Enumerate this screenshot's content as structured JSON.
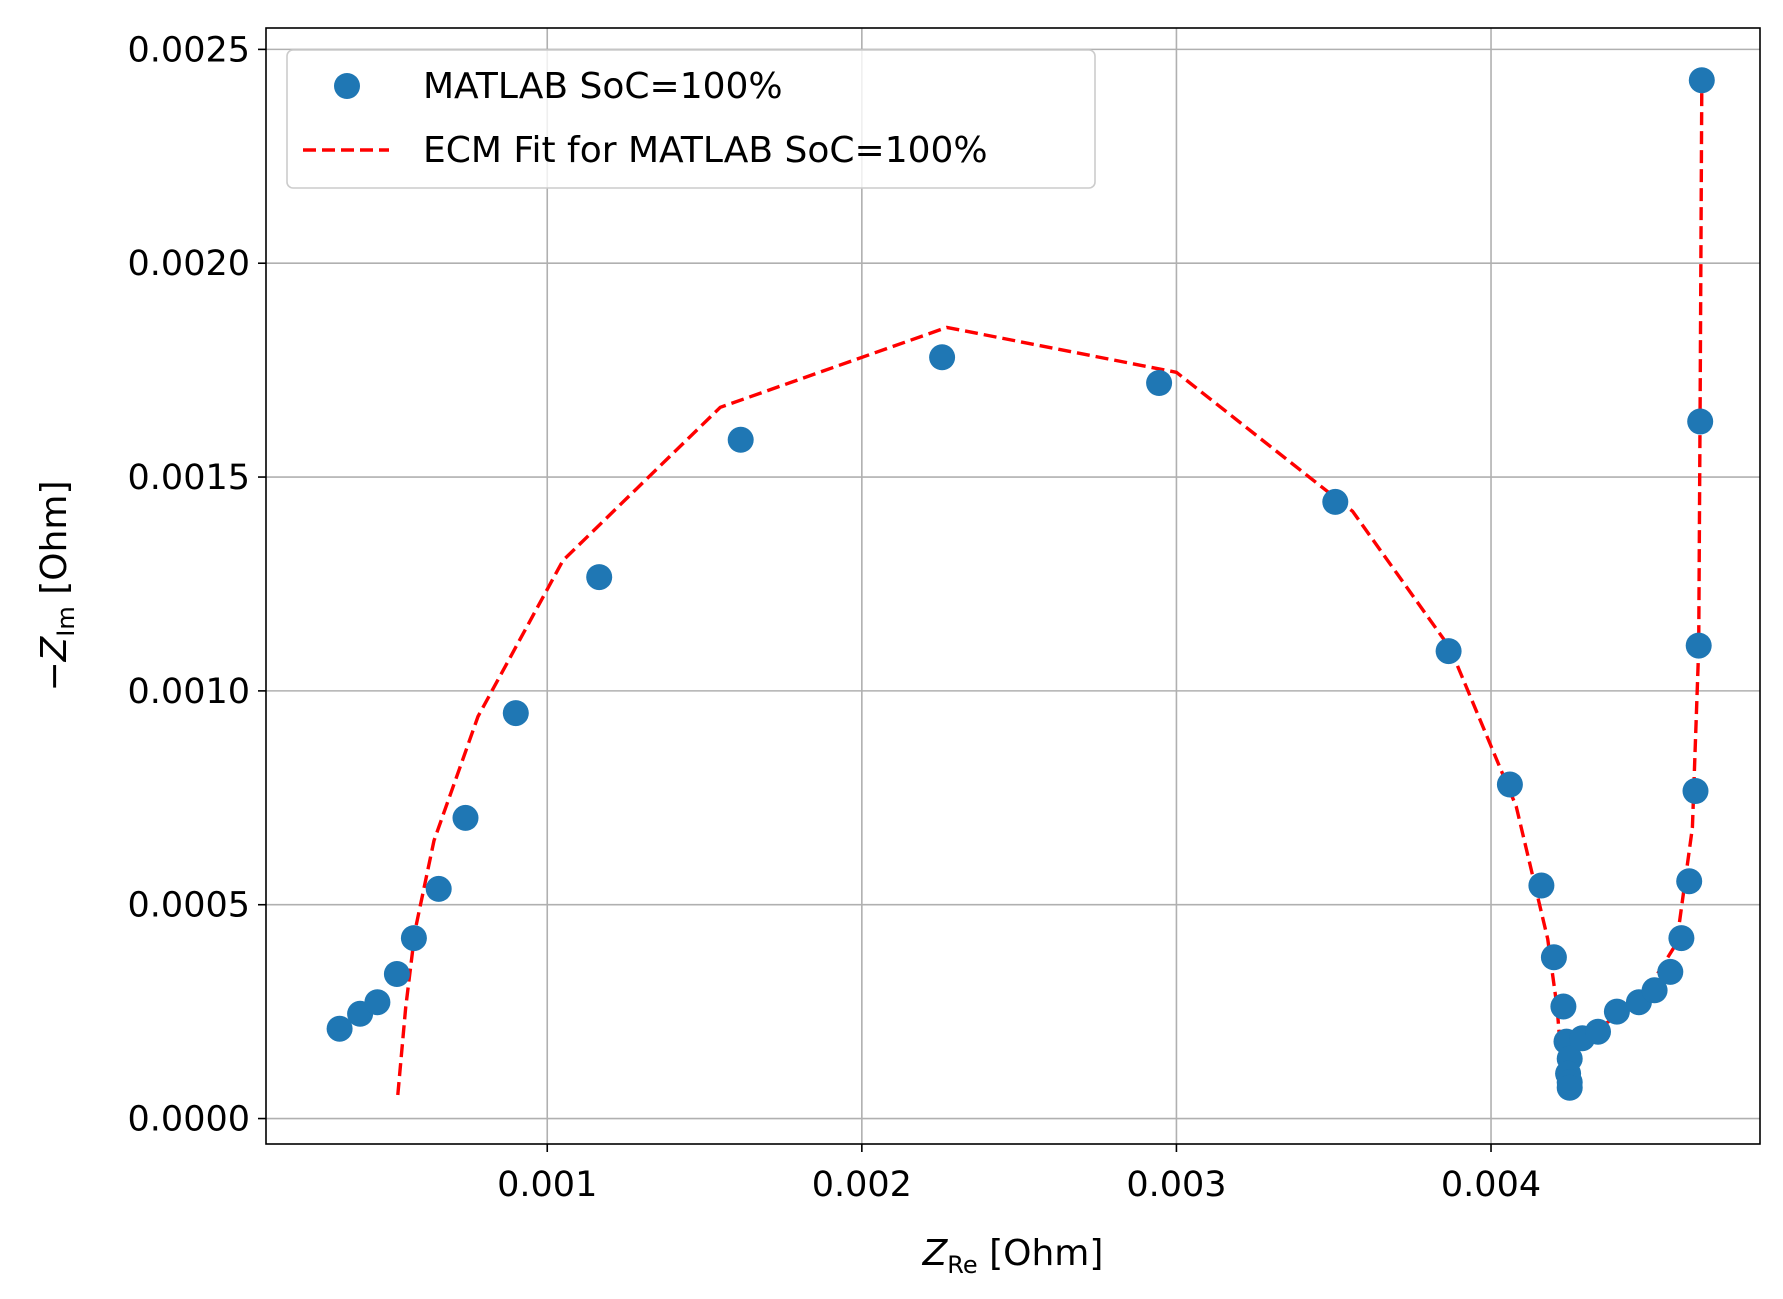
{
  "chart_data": {
    "type": "scatter",
    "title": "",
    "xlabel": {
      "main": "Z",
      "sub": "Re",
      "unit": " [Ohm]"
    },
    "ylabel": {
      "prefix": "−",
      "main": "Z",
      "sub": "Im",
      "unit": " [Ohm]"
    },
    "xlim": [
      0.000106,
      0.004855
    ],
    "ylim": [
      -5.95e-05,
      0.00255
    ],
    "xticks": [
      0.001,
      0.002,
      0.003,
      0.004
    ],
    "xtick_labels": [
      "0.001",
      "0.002",
      "0.003",
      "0.004"
    ],
    "yticks": [
      0.0,
      0.0005,
      0.001,
      0.0015,
      0.002,
      0.0025
    ],
    "ytick_labels": [
      "0.0000",
      "0.0005",
      "0.0010",
      "0.0015",
      "0.0020",
      "0.0025"
    ],
    "grid": true,
    "legend_position": "top-left",
    "series": [
      {
        "name": "MATLAB SoC=100%",
        "kind": "markers",
        "color": "#1f77b4",
        "points": [
          [
            0.00034,
            0.00021
          ],
          [
            0.000405,
            0.000245
          ],
          [
            0.00046,
            0.000272
          ],
          [
            0.000522,
            0.000338
          ],
          [
            0.000576,
            0.000422
          ],
          [
            0.000655,
            0.000537
          ],
          [
            0.00074,
            0.000703
          ],
          [
            0.0009,
            0.000948
          ],
          [
            0.001165,
            0.001266
          ],
          [
            0.001615,
            0.001587
          ],
          [
            0.002255,
            0.00178
          ],
          [
            0.002945,
            0.00172
          ],
          [
            0.003505,
            0.001442
          ],
          [
            0.003865,
            0.001093
          ],
          [
            0.00406,
            0.000781
          ],
          [
            0.00416,
            0.000545
          ],
          [
            0.0042,
            0.000377
          ],
          [
            0.00423,
            0.000262
          ],
          [
            0.00424,
            0.00018
          ],
          [
            0.00425,
            0.00014
          ],
          [
            0.004245,
            0.000105
          ],
          [
            0.00425,
            8.5e-05
          ],
          [
            0.00425,
            7.2e-05
          ],
          [
            0.00429,
            0.000188
          ],
          [
            0.00434,
            0.000203
          ],
          [
            0.0044,
            0.00025
          ],
          [
            0.00447,
            0.000272
          ],
          [
            0.00452,
            0.0003
          ],
          [
            0.00457,
            0.000343
          ],
          [
            0.004605,
            0.000422
          ],
          [
            0.00463,
            0.000555
          ],
          [
            0.00465,
            0.000766
          ],
          [
            0.00466,
            0.001106
          ],
          [
            0.004665,
            0.00163
          ],
          [
            0.00467,
            0.002428
          ]
        ]
      },
      {
        "name": "ECM Fit for MATLAB SoC=100%",
        "kind": "dashed-line",
        "color": "#ff0000",
        "points": [
          [
            0.000525,
            5.5e-05
          ],
          [
            0.00055,
            0.00026
          ],
          [
            0.00058,
            0.00044
          ],
          [
            0.00064,
            0.00065
          ],
          [
            0.00078,
            0.00094
          ],
          [
            0.00105,
            0.001305
          ],
          [
            0.00155,
            0.001663
          ],
          [
            0.00227,
            0.00185
          ],
          [
            0.003,
            0.001745
          ],
          [
            0.00356,
            0.00142
          ],
          [
            0.00387,
            0.0011
          ],
          [
            0.00408,
            0.00073
          ],
          [
            0.00418,
            0.00042
          ],
          [
            0.00421,
            0.00026
          ],
          [
            0.00423,
            7.5e-05
          ],
          [
            0.00428,
            0.00017
          ],
          [
            0.00436,
            0.00022
          ],
          [
            0.00448,
            0.00028
          ],
          [
            0.00459,
            0.00041
          ],
          [
            0.00464,
            0.00068
          ],
          [
            0.00466,
            0.0011
          ],
          [
            0.004665,
            0.0017
          ],
          [
            0.00467,
            0.00242
          ]
        ]
      }
    ]
  }
}
